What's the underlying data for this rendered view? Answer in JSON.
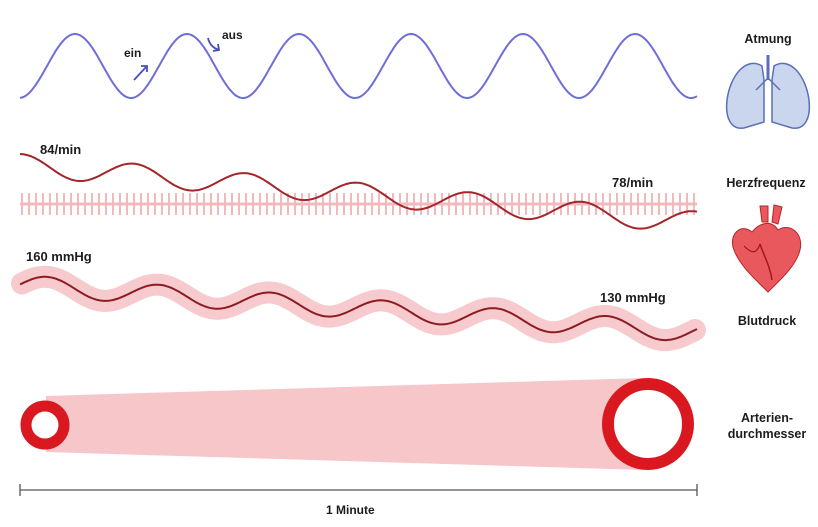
{
  "labels": {
    "breathing": "Atmung",
    "heart_rate": "Herzfrequenz",
    "blood_pressure": "Blutdruck",
    "artery_line1": "Arterien-",
    "artery_line2": "durchmesser",
    "inhale": "ein",
    "exhale": "aus",
    "hr_start": "84/min",
    "hr_end": "78/min",
    "bp_start": "160 mmHg",
    "bp_end": "130 mmHg",
    "timespan": "1 Minute"
  },
  "colors": {
    "breathing_wave": "#6e6fd6",
    "heart_wave": "#a3262b",
    "heart_band": "#f4b9bd",
    "bp_band": "#f6c2c4",
    "bp_wave": "#8e1b23",
    "artery_band": "#f6c6c9",
    "artery_ring": "#d9191f",
    "lung_fill": "#c9d6ee",
    "lung_stroke": "#5b6fb5",
    "heart_icon": "#e9585c"
  },
  "icons": {
    "lungs": "lungs-icon",
    "heart": "heart-icon"
  }
}
